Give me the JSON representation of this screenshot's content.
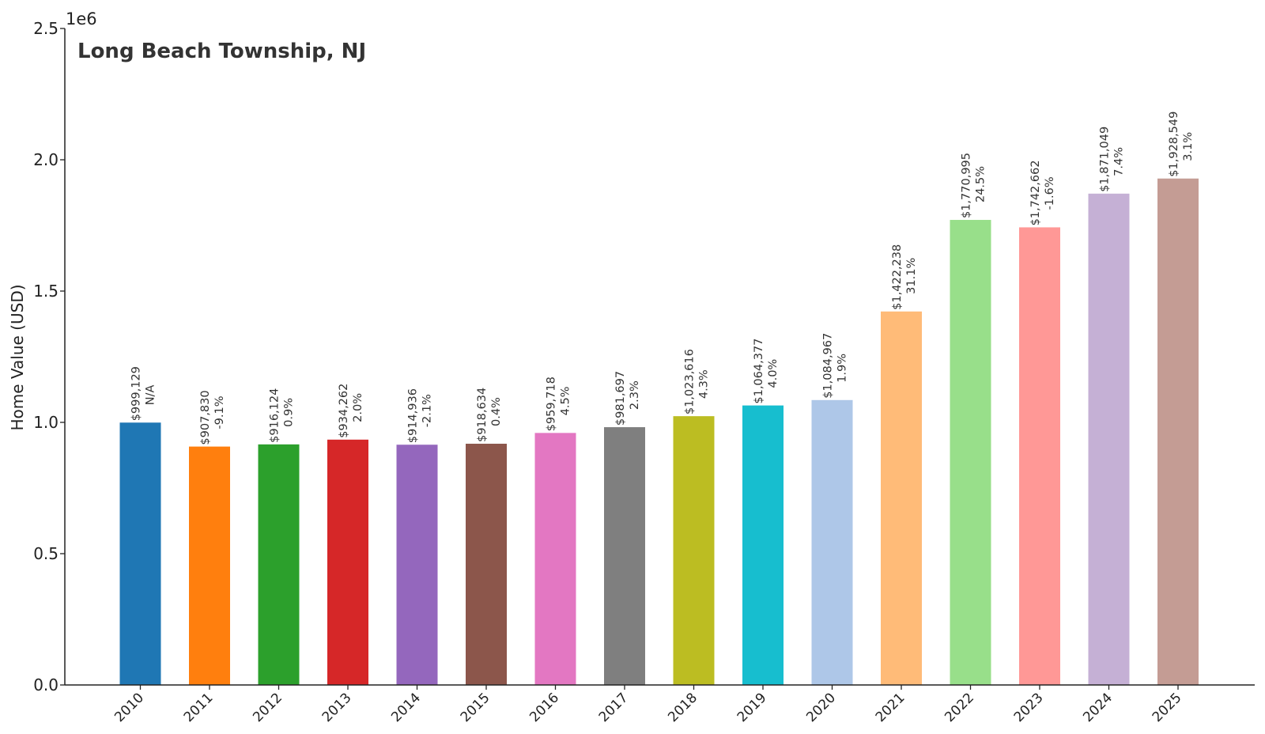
{
  "chart_data": {
    "type": "bar",
    "title": "Long Beach Township, NJ",
    "ylabel": "Home Value (USD)",
    "y_offset_text": "1e6",
    "ylim": [
      0,
      2500000
    ],
    "y_ticks": [
      0,
      500000,
      1000000,
      1500000,
      2000000,
      2500000
    ],
    "y_tick_labels": [
      "0.0",
      "0.5",
      "1.0",
      "1.5",
      "2.0",
      "2.5"
    ],
    "categories": [
      "2010",
      "2011",
      "2012",
      "2013",
      "2014",
      "2015",
      "2016",
      "2017",
      "2018",
      "2019",
      "2020",
      "2021",
      "2022",
      "2023",
      "2024",
      "2025"
    ],
    "values": [
      999129,
      907830,
      916124,
      934262,
      914936,
      918634,
      959718,
      981697,
      1023616,
      1064377,
      1084967,
      1422238,
      1770995,
      1742662,
      1871049,
      1928549
    ],
    "value_labels": [
      "$999,129",
      "$907,830",
      "$916,124",
      "$934,262",
      "$914,936",
      "$918,634",
      "$959,718",
      "$981,697",
      "$1,023,616",
      "$1,064,377",
      "$1,084,967",
      "$1,422,238",
      "$1,770,995",
      "$1,742,662",
      "$1,871,049",
      "$1,928,549"
    ],
    "change_labels": [
      "N/A",
      "-9.1%",
      "0.9%",
      "2.0%",
      "-2.1%",
      "0.4%",
      "4.5%",
      "2.3%",
      "4.3%",
      "4.0%",
      "1.9%",
      "31.1%",
      "24.5%",
      "-1.6%",
      "7.4%",
      "3.1%"
    ],
    "colors": [
      "#1f77b4",
      "#ff7f0e",
      "#2ca02c",
      "#d62728",
      "#9467bd",
      "#8c564b",
      "#e377c2",
      "#7f7f7f",
      "#bcbd22",
      "#17becf",
      "#aec7e8",
      "#ffbb78",
      "#98df8a",
      "#ff9896",
      "#c5b0d5",
      "#c49c94"
    ],
    "grid": false,
    "legend": "none"
  }
}
